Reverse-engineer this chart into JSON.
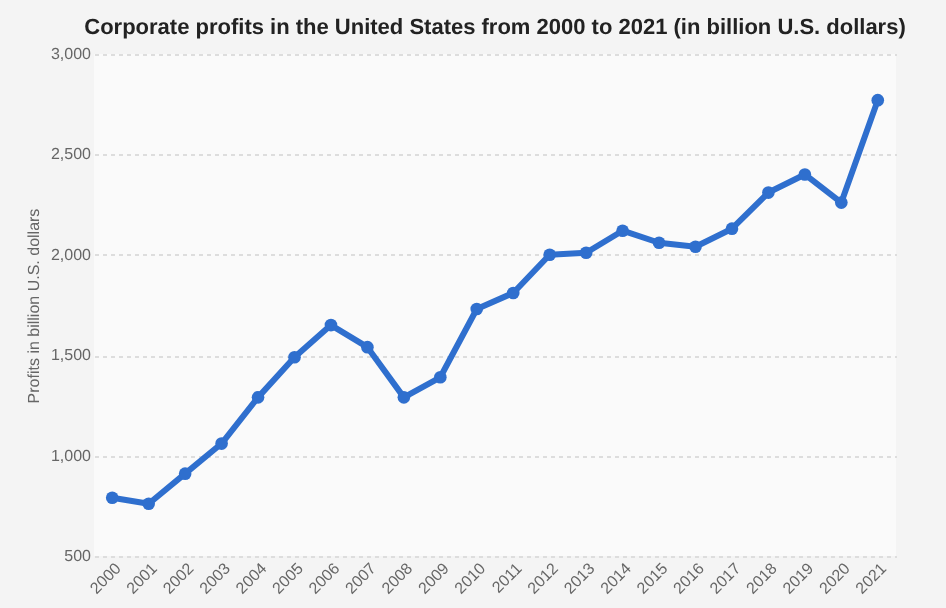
{
  "chart_data": {
    "type": "line",
    "title": "Corporate profits in the United States from 2000 to 2021 (in billion U.S. dollars)",
    "ylabel": "Profits in billion U.S. dollars",
    "categories": [
      "2000",
      "2001",
      "2002",
      "2003",
      "2004",
      "2005",
      "2006",
      "2007",
      "2008",
      "2009",
      "2010",
      "2011",
      "2012",
      "2013",
      "2014",
      "2015",
      "2016",
      "2017",
      "2018",
      "2019",
      "2020",
      "2021"
    ],
    "series": [
      {
        "color": "#2f6fce",
        "values": [
          790,
          760,
          910,
          1060,
          1290,
          1490,
          1650,
          1540,
          1290,
          1390,
          1730,
          1810,
          2000,
          2010,
          2120,
          2060,
          2040,
          2130,
          2310,
          2400,
          2260,
          2770
        ]
      }
    ],
    "ylim": [
      500,
      3000
    ],
    "yticks": [
      {
        "value": 500,
        "label": "500"
      },
      {
        "value": 1000,
        "label": "1,000"
      },
      {
        "value": 1500,
        "label": "1,500"
      },
      {
        "value": 2000,
        "label": "2,000"
      },
      {
        "value": 2500,
        "label": "2,500"
      },
      {
        "value": 3000,
        "label": "3,000"
      }
    ],
    "grid": "y",
    "marker": "circle",
    "line_style": "solid"
  }
}
